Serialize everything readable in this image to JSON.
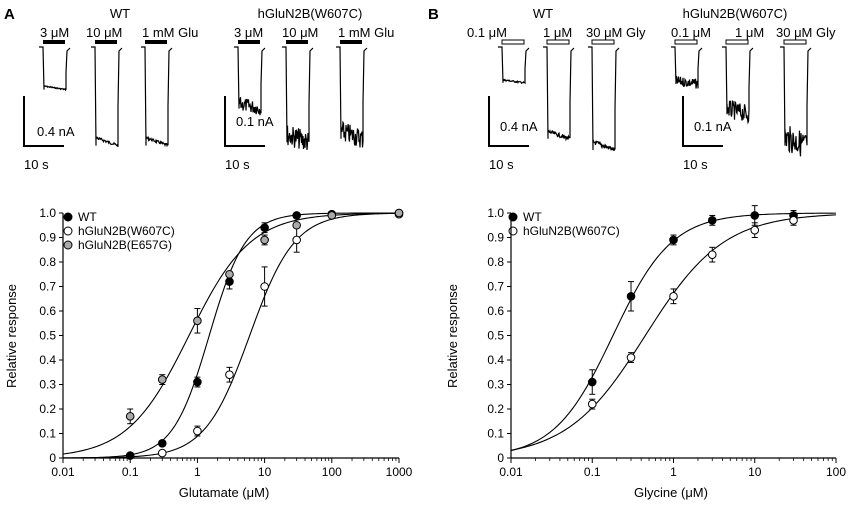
{
  "panels": {
    "A": {
      "letter": "A",
      "groups": [
        {
          "title": "WT",
          "pulses": [
            "3 μM",
            "10 μM",
            "1 mM Glu"
          ],
          "bar_current": "0.4 nA",
          "bar_time": "10 s"
        },
        {
          "title": "hGluN2B(W607C)",
          "pulses": [
            "3 μM",
            "10 μM",
            "1 mM Glu"
          ],
          "bar_current": "0.1 nA",
          "bar_time": "10 s"
        }
      ]
    },
    "B": {
      "letter": "B",
      "groups": [
        {
          "title": "WT",
          "pulses": [
            "0.1 μM",
            "1 μM",
            "30 μM Gly"
          ],
          "bar_current": "0.4 nA",
          "bar_time": "10 s"
        },
        {
          "title": "hGluN2B(W607C)",
          "pulses": [
            "0.1 μM",
            "1 μM",
            "30 μM Gly"
          ],
          "bar_current": "0.1 nA",
          "bar_time": "10 s"
        }
      ]
    }
  },
  "traces": {
    "A": [
      {
        "depths": [
          0.38,
          0.88,
          0.88
        ],
        "noise": 0.03
      },
      {
        "depths": [
          0.55,
          0.85,
          0.82
        ],
        "noise": 0.25
      }
    ],
    "B": [
      {
        "depths": [
          0.32,
          0.82,
          0.92
        ],
        "noise": 0.05
      },
      {
        "depths": [
          0.33,
          0.6,
          0.88
        ],
        "noise": 0.3
      }
    ]
  },
  "chart_data": [
    {
      "type": "scatter",
      "xlabel": "Glutamate (μM)",
      "ylabel": "Relative response",
      "xscale": "log",
      "xlim": [
        0.01,
        1000
      ],
      "ylim": [
        0,
        1.0
      ],
      "xticks": [
        "0.01",
        "0.1",
        "1",
        "10",
        "100",
        "1000"
      ],
      "yticks": [
        "0",
        "0.1",
        "0.2",
        "0.3",
        "0.4",
        "0.5",
        "0.6",
        "0.7",
        "0.8",
        "0.9",
        "1.0"
      ],
      "legend_position": "top-left",
      "series": [
        {
          "name": "WT",
          "marker": "filled-circle",
          "x": [
            0.1,
            0.3,
            1,
            3,
            10,
            30,
            100,
            1000
          ],
          "y": [
            0.01,
            0.06,
            0.31,
            0.72,
            0.94,
            0.99,
            0.995,
            1.0
          ],
          "err": [
            0.01,
            0.01,
            0.02,
            0.03,
            0.02,
            0.01,
            0.01,
            0.01
          ],
          "fit": {
            "ec50": 1.5,
            "hill": 1.6
          }
        },
        {
          "name": "hGluN2B(W607C)",
          "marker": "open-circle",
          "x": [
            0.3,
            1,
            3,
            10,
            30,
            1000
          ],
          "y": [
            0.02,
            0.11,
            0.34,
            0.7,
            0.89,
            0.995
          ],
          "err": [
            0.01,
            0.02,
            0.03,
            0.08,
            0.05,
            0.01
          ],
          "fit": {
            "ec50": 6.0,
            "hill": 1.3
          }
        },
        {
          "name": "hGluN2B(E657G)",
          "marker": "grey-circle",
          "x": [
            0.1,
            0.3,
            1,
            3,
            10,
            30,
            100,
            1000
          ],
          "y": [
            0.17,
            0.32,
            0.56,
            0.75,
            0.89,
            0.95,
            0.99,
            1.0
          ],
          "err": [
            0.03,
            0.02,
            0.05,
            0.01,
            0.02,
            0.01,
            0.01,
            0.01
          ],
          "fit": {
            "ec50": 0.75,
            "hill": 0.95
          }
        }
      ]
    },
    {
      "type": "scatter",
      "xlabel": "Glycine (μM)",
      "ylabel": "Relative response",
      "xscale": "log",
      "xlim": [
        0.01,
        100
      ],
      "ylim": [
        0,
        1.0
      ],
      "xticks": [
        "0.01",
        "0.1",
        "1",
        "10",
        "100"
      ],
      "yticks": [
        "0",
        "0.1",
        "0.2",
        "0.3",
        "0.4",
        "0.5",
        "0.6",
        "0.7",
        "0.8",
        "0.9",
        "1.0"
      ],
      "legend_position": "top-left",
      "series": [
        {
          "name": "WT",
          "marker": "filled-circle",
          "x": [
            0.1,
            0.3,
            1,
            3,
            10,
            30
          ],
          "y": [
            0.31,
            0.66,
            0.89,
            0.97,
            0.99,
            0.99
          ],
          "err": [
            0.05,
            0.06,
            0.02,
            0.02,
            0.04,
            0.02
          ],
          "fit": {
            "ec50": 0.18,
            "hill": 1.2
          }
        },
        {
          "name": "hGluN2B(W607C)",
          "marker": "open-circle",
          "x": [
            0.1,
            0.3,
            1,
            3,
            10,
            30
          ],
          "y": [
            0.22,
            0.41,
            0.66,
            0.83,
            0.93,
            0.97
          ],
          "err": [
            0.02,
            0.02,
            0.03,
            0.03,
            0.03,
            0.02
          ],
          "fit": {
            "ec50": 0.45,
            "hill": 0.9
          }
        }
      ]
    }
  ]
}
